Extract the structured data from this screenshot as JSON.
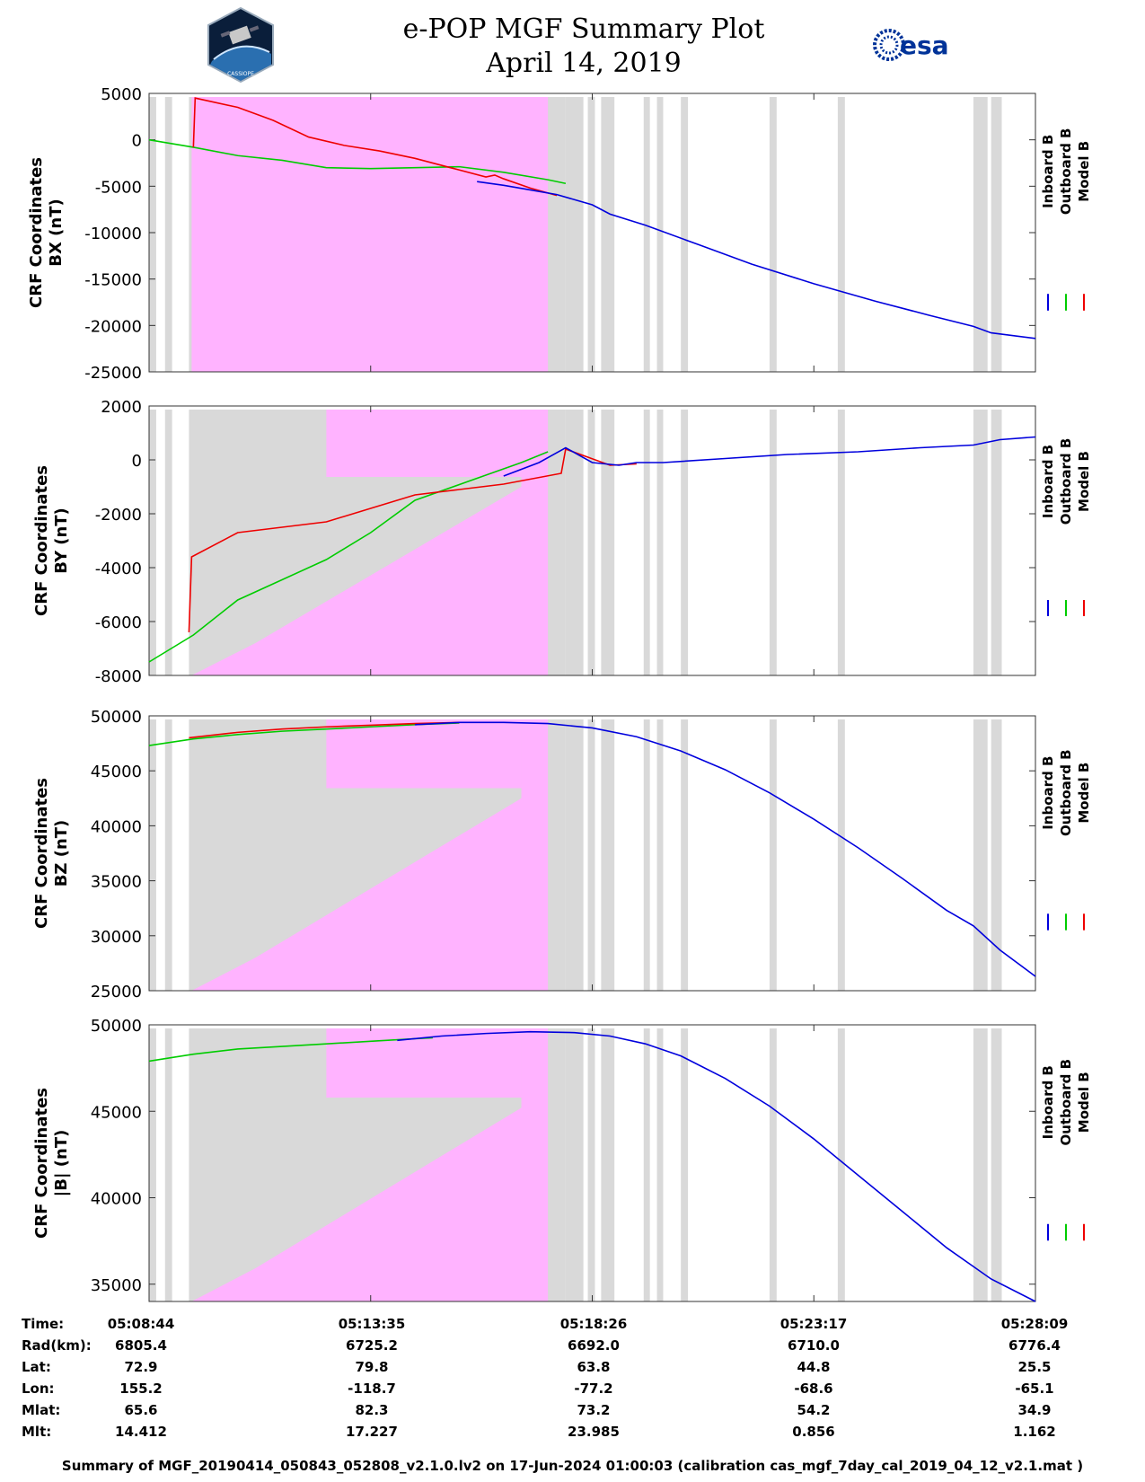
{
  "header": {
    "title_line1": "e-POP MGF Summary Plot",
    "title_line2": "April 14, 2019",
    "logo_left_text": "CASSIOPE",
    "logo_right_text": "esa"
  },
  "colors": {
    "inboard": "#0000dd",
    "outboard": "#00cc00",
    "model": "#ee0000",
    "pink_region": "#ffb3ff",
    "gray_region": "#d9d9d9"
  },
  "legend": [
    "Inboard B",
    "Outboard B",
    "Model B"
  ],
  "chart_data": [
    {
      "type": "line",
      "ylabel_line1": "CRF Coordinates",
      "ylabel_line2": "BX (nT)",
      "ylim": [
        -25000,
        5000
      ],
      "yticks": [
        5000,
        0,
        -5000,
        -10000,
        -15000,
        -20000,
        -25000
      ],
      "ytick_labels": [
        "5000",
        "0",
        "-5000",
        "-10000",
        "-15000",
        "-20000",
        "-25000"
      ],
      "series": [
        {
          "name": "Outboard B",
          "x": [
            0,
            0.05,
            0.1,
            0.15,
            0.2,
            0.25,
            0.3,
            0.35,
            0.4,
            0.45,
            0.47
          ],
          "values": [
            0,
            -800,
            -1700,
            -2200,
            -3000,
            -3100,
            -3000,
            -2900,
            -3500,
            -4300,
            -4700
          ]
        },
        {
          "name": "Model B",
          "x": [
            0.05,
            0.052,
            0.1,
            0.14,
            0.18,
            0.22,
            0.26,
            0.3,
            0.34,
            0.38,
            0.39,
            0.4,
            0.43,
            0.46
          ],
          "values": [
            -800,
            4500,
            3500,
            2100,
            300,
            -600,
            -1200,
            -2000,
            -3000,
            -4000,
            -3800,
            -4200,
            -5200,
            -6000
          ]
        },
        {
          "name": "Inboard B",
          "x": [
            0.37,
            0.4,
            0.43,
            0.46,
            0.5,
            0.52,
            0.56,
            0.62,
            0.68,
            0.75,
            0.82,
            0.88,
            0.93,
            0.95,
            1.0
          ],
          "values": [
            -4500,
            -4900,
            -5400,
            -5900,
            -7000,
            -8000,
            -9200,
            -11300,
            -13400,
            -15500,
            -17400,
            -18900,
            -20100,
            -20800,
            -21400
          ]
        }
      ]
    },
    {
      "type": "line",
      "ylabel_line1": "CRF Coordinates",
      "ylabel_line2": "BY (nT)",
      "ylim": [
        -8000,
        2000
      ],
      "yticks": [
        2000,
        0,
        -2000,
        -4000,
        -6000,
        -8000
      ],
      "ytick_labels": [
        "2000",
        "0",
        "-2000",
        "-4000",
        "-6000",
        "-8000"
      ],
      "series": [
        {
          "name": "Outboard B",
          "x": [
            0,
            0.05,
            0.1,
            0.14,
            0.2,
            0.25,
            0.3,
            0.36,
            0.42,
            0.45
          ],
          "values": [
            -7500,
            -6500,
            -5200,
            -4600,
            -3700,
            -2700,
            -1500,
            -800,
            -100,
            300
          ]
        },
        {
          "name": "Model B",
          "x": [
            0.045,
            0.048,
            0.1,
            0.15,
            0.2,
            0.25,
            0.3,
            0.35,
            0.4,
            0.465,
            0.47,
            0.52,
            0.55
          ],
          "values": [
            -6400,
            -3600,
            -2700,
            -2500,
            -2300,
            -1800,
            -1300,
            -1100,
            -900,
            -500,
            400,
            -200,
            -150
          ]
        },
        {
          "name": "Inboard B",
          "x": [
            0.4,
            0.44,
            0.47,
            0.5,
            0.53,
            0.55,
            0.58,
            0.65,
            0.72,
            0.8,
            0.87,
            0.93,
            0.96,
            1.0
          ],
          "values": [
            -600,
            -100,
            450,
            -100,
            -200,
            -100,
            -100,
            50,
            200,
            300,
            450,
            550,
            750,
            850
          ]
        }
      ]
    },
    {
      "type": "line",
      "ylabel_line1": "CRF Coordinates",
      "ylabel_line2": "BZ (nT)",
      "ylim": [
        25000,
        50000
      ],
      "yticks": [
        50000,
        45000,
        40000,
        35000,
        30000,
        25000
      ],
      "ytick_labels": [
        "50000",
        "45000",
        "40000",
        "35000",
        "30000",
        "25000"
      ],
      "series": [
        {
          "name": "Outboard B",
          "x": [
            0,
            0.05,
            0.1,
            0.15,
            0.2,
            0.25,
            0.3,
            0.35
          ],
          "values": [
            47300,
            47900,
            48300,
            48600,
            48800,
            49000,
            49200,
            49350
          ]
        },
        {
          "name": "Model B",
          "x": [
            0.045,
            0.1,
            0.15,
            0.2,
            0.25,
            0.3,
            0.35
          ],
          "values": [
            48000,
            48500,
            48800,
            49000,
            49150,
            49300,
            49400
          ]
        },
        {
          "name": "Inboard B",
          "x": [
            0.3,
            0.35,
            0.4,
            0.45,
            0.5,
            0.55,
            0.6,
            0.65,
            0.7,
            0.75,
            0.8,
            0.85,
            0.9,
            0.93,
            0.96,
            1.0
          ],
          "values": [
            49200,
            49400,
            49400,
            49300,
            48900,
            48100,
            46800,
            45100,
            43000,
            40600,
            38000,
            35200,
            32300,
            30900,
            28700,
            26300
          ]
        }
      ]
    },
    {
      "type": "line",
      "ylabel_line1": "CRF Coordinates",
      "ylabel_line2": "|B| (nT)",
      "ylim": [
        34000,
        50000
      ],
      "yticks": [
        50000,
        45000,
        40000,
        35000
      ],
      "ytick_labels": [
        "50000",
        "45000",
        "40000",
        "35000"
      ],
      "series": [
        {
          "name": "Outboard B",
          "x": [
            0,
            0.05,
            0.1,
            0.15,
            0.2,
            0.25,
            0.3,
            0.32
          ],
          "values": [
            47900,
            48300,
            48600,
            48750,
            48900,
            49050,
            49200,
            49250
          ]
        },
        {
          "name": "Inboard B",
          "x": [
            0.28,
            0.33,
            0.38,
            0.43,
            0.48,
            0.52,
            0.56,
            0.6,
            0.65,
            0.7,
            0.75,
            0.8,
            0.85,
            0.9,
            0.95,
            1.0
          ],
          "values": [
            49100,
            49350,
            49500,
            49600,
            49550,
            49350,
            48900,
            48200,
            46900,
            45300,
            43400,
            41300,
            39200,
            37100,
            35300,
            34000
          ]
        }
      ]
    }
  ],
  "info": {
    "labels": [
      "Time:",
      "Rad(km):",
      "Lat:",
      "Lon:",
      "Mlat:",
      "Mlt:"
    ],
    "columns": [
      [
        "05:08:44",
        "6805.4",
        "72.9",
        "155.2",
        "65.6",
        "14.412"
      ],
      [
        "05:13:35",
        "6725.2",
        "79.8",
        "-118.7",
        "82.3",
        "17.227"
      ],
      [
        "05:18:26",
        "6692.0",
        "63.8",
        "-77.2",
        "73.2",
        "23.985"
      ],
      [
        "05:23:17",
        "6710.0",
        "44.8",
        "-68.6",
        "54.2",
        "0.856"
      ],
      [
        "05:28:09",
        "6776.4",
        "25.5",
        "-65.1",
        "34.9",
        "1.162"
      ]
    ]
  },
  "footer": "Summary of MGF_20190414_050843_052808_v2.1.0.lv2 on 17-Jun-2024 01:00:03 (calibration cas_mgf_7day_cal_2019_04_12_v2.1.mat )"
}
